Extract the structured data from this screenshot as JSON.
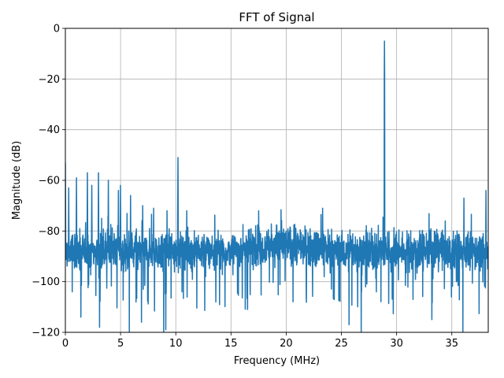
{
  "chart_data": {
    "type": "line",
    "title": "FFT of Signal",
    "xlabel": "Frequency (MHz)",
    "ylabel": "Magnitude (dB)",
    "xlim": [
      0,
      38.3
    ],
    "ylim": [
      -120,
      0
    ],
    "xticks": [
      0,
      5,
      10,
      15,
      20,
      25,
      30,
      35
    ],
    "xtick_labels": [
      "0",
      "5",
      "10",
      "15",
      "20",
      "25",
      "30",
      "35"
    ],
    "yticks": [
      0,
      -20,
      -40,
      -60,
      -80,
      -100,
      -120
    ],
    "ytick_labels": [
      "0",
      "−20",
      "−40",
      "−60",
      "−80",
      "−100",
      "−120"
    ],
    "grid": true,
    "line_color": "#1f77b4",
    "series": [
      {
        "noise_floor_db": -88,
        "noise_spread_db": 8,
        "peaks": [
          {
            "x": 0.0,
            "y": -53
          },
          {
            "x": 0.3,
            "y": -63
          },
          {
            "x": 1.0,
            "y": -59
          },
          {
            "x": 2.0,
            "y": -57
          },
          {
            "x": 2.4,
            "y": -62
          },
          {
            "x": 3.0,
            "y": -57
          },
          {
            "x": 3.9,
            "y": -60
          },
          {
            "x": 4.8,
            "y": -64
          },
          {
            "x": 5.0,
            "y": -62
          },
          {
            "x": 5.9,
            "y": -66
          },
          {
            "x": 7.0,
            "y": -70
          },
          {
            "x": 8.0,
            "y": -71
          },
          {
            "x": 9.2,
            "y": -72
          },
          {
            "x": 10.2,
            "y": -51
          },
          {
            "x": 11.0,
            "y": -72
          },
          {
            "x": 17.5,
            "y": -72
          },
          {
            "x": 23.3,
            "y": -71
          },
          {
            "x": 28.9,
            "y": -5
          },
          {
            "x": 34.4,
            "y": -76
          },
          {
            "x": 36.1,
            "y": -67
          },
          {
            "x": 38.1,
            "y": -64
          }
        ],
        "dips": [
          {
            "x": 5.8,
            "y": -120
          },
          {
            "x": 8.9,
            "y": -120
          },
          {
            "x": 9.1,
            "y": -119
          },
          {
            "x": 26.8,
            "y": -120
          },
          {
            "x": 36.0,
            "y": -120
          },
          {
            "x": 3.1,
            "y": -118
          },
          {
            "x": 1.4,
            "y": -114
          },
          {
            "x": 6.9,
            "y": -116
          },
          {
            "x": 16.5,
            "y": -111
          },
          {
            "x": 25.7,
            "y": -117
          },
          {
            "x": 33.2,
            "y": -115
          }
        ]
      }
    ]
  }
}
